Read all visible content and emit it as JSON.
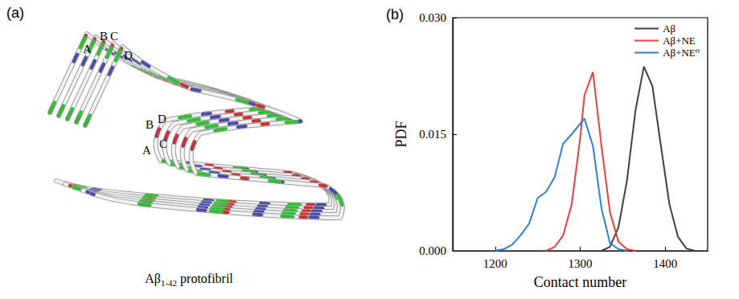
{
  "chart_data": {
    "type": "line",
    "panel_label": "(b)",
    "xlabel": "Contact number",
    "ylabel": "PDF",
    "xlim": [
      1150,
      1450
    ],
    "xticks": [
      1200,
      1300,
      1400
    ],
    "ylim": [
      0,
      0.03
    ],
    "yticks": [
      {
        "value": 0,
        "label": "0.000"
      },
      0.015,
      {
        "value": 0.03,
        "label": "0.030"
      }
    ],
    "grid": false,
    "legend": "upper right",
    "series": [
      {
        "name": "Aβ",
        "color": "#404040",
        "x": [
          1325,
          1335,
          1345,
          1355,
          1365,
          1375,
          1385,
          1395,
          1405,
          1415,
          1425,
          1435
        ],
        "values": [
          0,
          0.0005,
          0.003,
          0.009,
          0.018,
          0.0237,
          0.0212,
          0.0135,
          0.006,
          0.0018,
          0.0003,
          0
        ]
      },
      {
        "name": "Aβ+NE",
        "color": "#e8403a",
        "x": [
          1260,
          1270,
          1280,
          1290,
          1300,
          1305,
          1315,
          1325,
          1335,
          1345,
          1355,
          1365
        ],
        "values": [
          0,
          0.0005,
          0.002,
          0.006,
          0.0145,
          0.02,
          0.023,
          0.0135,
          0.005,
          0.0012,
          0.0002,
          0
        ]
      },
      {
        "name": "Aβ+NE⁰",
        "color": "#2f7fd6",
        "x": [
          1200,
          1210,
          1220,
          1230,
          1240,
          1250,
          1260,
          1270,
          1280,
          1290,
          1305,
          1315,
          1325,
          1335,
          1345,
          1355
        ],
        "values": [
          0,
          0.0002,
          0.0008,
          0.002,
          0.0035,
          0.0068,
          0.0076,
          0.0095,
          0.0138,
          0.015,
          0.017,
          0.0135,
          0.0055,
          0.001,
          0.0002,
          0
        ]
      }
    ]
  },
  "figure": {
    "panel_a": {
      "panel_label": "(a)",
      "caption": {
        "text": "Aβ",
        "sub": "1-42",
        "tail": " protofibril"
      },
      "strand_labels_outer": [
        "A",
        "B",
        "C",
        "D"
      ],
      "strand_labels_inner": [
        "B",
        "D",
        "A",
        "C"
      ]
    }
  }
}
